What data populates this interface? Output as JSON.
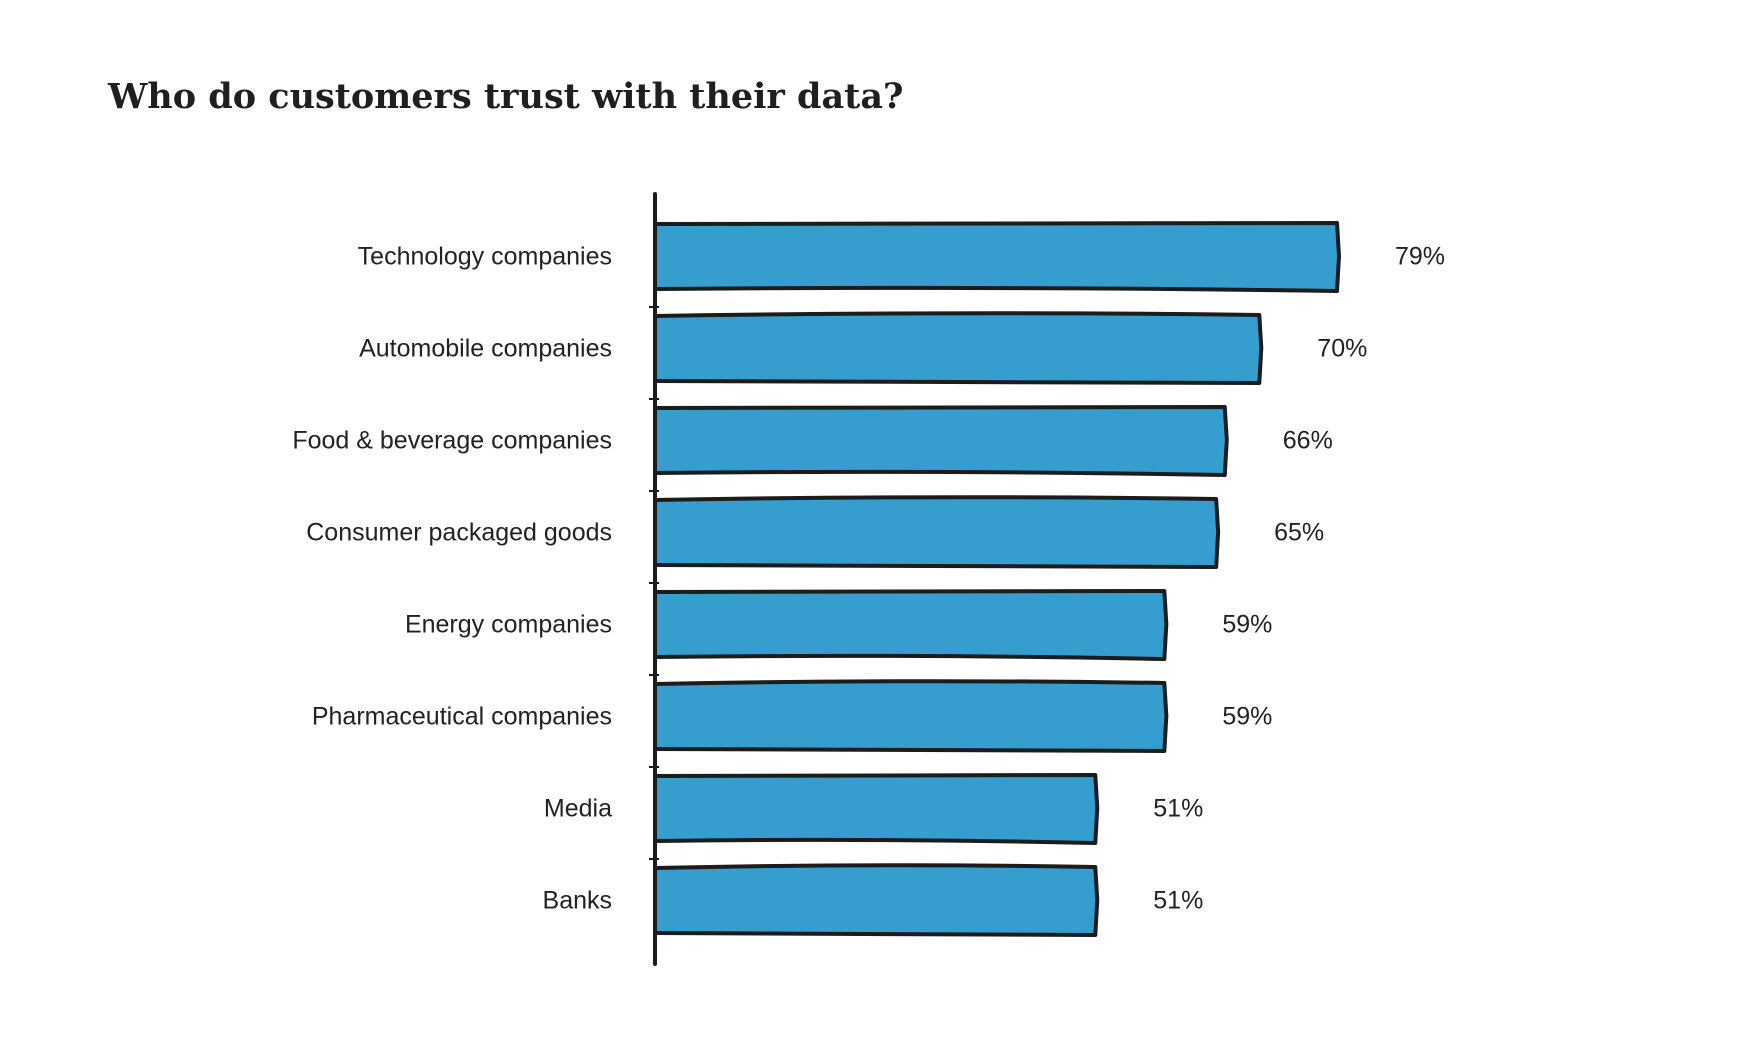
{
  "chart_data": {
    "type": "bar",
    "orientation": "horizontal",
    "title": "Who do customers trust with their data?",
    "xlabel": "",
    "ylabel": "",
    "categories": [
      "Technology companies",
      "Automobile companies",
      "Food & beverage companies",
      "Consumer packaged goods",
      "Energy companies",
      "Pharmaceutical companies",
      "Media",
      "Banks"
    ],
    "values": [
      79,
      70,
      66,
      65,
      59,
      59,
      51,
      51
    ],
    "value_labels": [
      "79%",
      "70%",
      "66%",
      "65%",
      "59%",
      "59%",
      "51%",
      "51%"
    ],
    "xlim": [
      0,
      79
    ],
    "grid": false,
    "legend": "none",
    "colors": {
      "bar": "#369ecf",
      "outline": "#1c1c1c",
      "text": "#222222"
    }
  }
}
